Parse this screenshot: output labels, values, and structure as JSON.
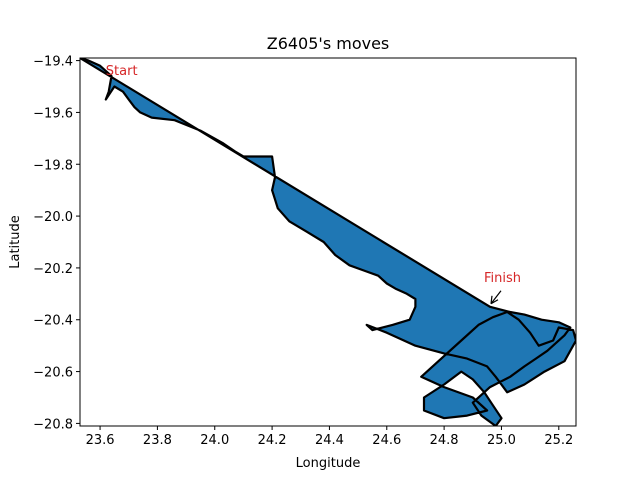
{
  "chart_data": {
    "type": "area",
    "title": "Z6405's moves",
    "xlabel": "Longitude",
    "ylabel": "Latitude",
    "xlim": [
      23.53,
      25.26
    ],
    "ylim": [
      -20.81,
      -19.39
    ],
    "xticks": [
      23.6,
      23.8,
      24.0,
      24.2,
      24.4,
      24.6,
      24.8,
      25.0,
      25.2
    ],
    "xtick_labels": [
      "23.6",
      "23.8",
      "24.0",
      "24.2",
      "24.4",
      "24.6",
      "24.8",
      "25.0",
      "25.2"
    ],
    "yticks": [
      -19.4,
      -19.6,
      -19.8,
      -20.0,
      -20.2,
      -20.4,
      -20.6,
      -20.8
    ],
    "ytick_labels": [
      "−19.4",
      "−19.6",
      "−19.8",
      "−20.0",
      "−20.2",
      "−20.4",
      "−20.6",
      "−20.8"
    ],
    "grid": false,
    "fill_color": "#1f77b4",
    "line_color": "#000000",
    "annotation_color": "#d62728",
    "annotations": [
      {
        "text": "Start",
        "x": 23.62,
        "y": -19.44
      },
      {
        "text": "Finish",
        "x": 24.96,
        "y": -20.35
      }
    ],
    "track": {
      "x": [
        23.53,
        23.56,
        23.6,
        23.64,
        23.63,
        23.62,
        23.65,
        23.68,
        23.7,
        23.72,
        23.74,
        23.78,
        23.86,
        23.95,
        24.03,
        24.07,
        24.1,
        24.15,
        24.2,
        24.21,
        24.2,
        24.22,
        24.26,
        24.32,
        24.38,
        24.42,
        24.47,
        24.52,
        24.57,
        24.6,
        24.63,
        24.67,
        24.7,
        24.7,
        24.68,
        24.62,
        24.55,
        24.53,
        24.6,
        24.7,
        24.8,
        24.88,
        24.95,
        24.98,
        25.02,
        25.08,
        25.15,
        25.22,
        25.26,
        25.25,
        25.2,
        25.18,
        25.13,
        25.1,
        25.06,
        25.02,
        24.97,
        24.92,
        24.86,
        24.78,
        24.72,
        24.8,
        24.9,
        24.95,
        24.88,
        24.8,
        24.73,
        24.73,
        24.8,
        24.86,
        24.9,
        24.94,
        24.97,
        25.0,
        24.98,
        24.93,
        24.9,
        24.96,
        25.03,
        25.08,
        25.12,
        25.16,
        25.19,
        25.22,
        25.24,
        25.2,
        25.14,
        25.08,
        25.03,
        24.96
      ],
      "y": [
        -19.39,
        -19.4,
        -19.42,
        -19.46,
        -19.52,
        -19.55,
        -19.5,
        -19.52,
        -19.55,
        -19.58,
        -19.6,
        -19.62,
        -19.63,
        -19.67,
        -19.72,
        -19.75,
        -19.77,
        -19.77,
        -19.77,
        -19.85,
        -19.9,
        -19.97,
        -20.02,
        -20.06,
        -20.1,
        -20.15,
        -20.19,
        -20.21,
        -20.23,
        -20.26,
        -20.28,
        -20.3,
        -20.32,
        -20.35,
        -20.4,
        -20.42,
        -20.44,
        -20.42,
        -20.45,
        -20.5,
        -20.53,
        -20.55,
        -20.58,
        -20.62,
        -20.68,
        -20.65,
        -20.6,
        -20.56,
        -20.48,
        -20.44,
        -20.43,
        -20.48,
        -20.5,
        -20.45,
        -20.4,
        -20.37,
        -20.39,
        -20.42,
        -20.48,
        -20.56,
        -20.62,
        -20.66,
        -20.7,
        -20.75,
        -20.77,
        -20.78,
        -20.75,
        -20.7,
        -20.65,
        -20.6,
        -20.63,
        -20.68,
        -20.73,
        -20.78,
        -20.81,
        -20.77,
        -20.72,
        -20.66,
        -20.62,
        -20.58,
        -20.55,
        -20.52,
        -20.49,
        -20.46,
        -20.43,
        -20.41,
        -20.4,
        -20.38,
        -20.37,
        -20.35
      ]
    }
  }
}
